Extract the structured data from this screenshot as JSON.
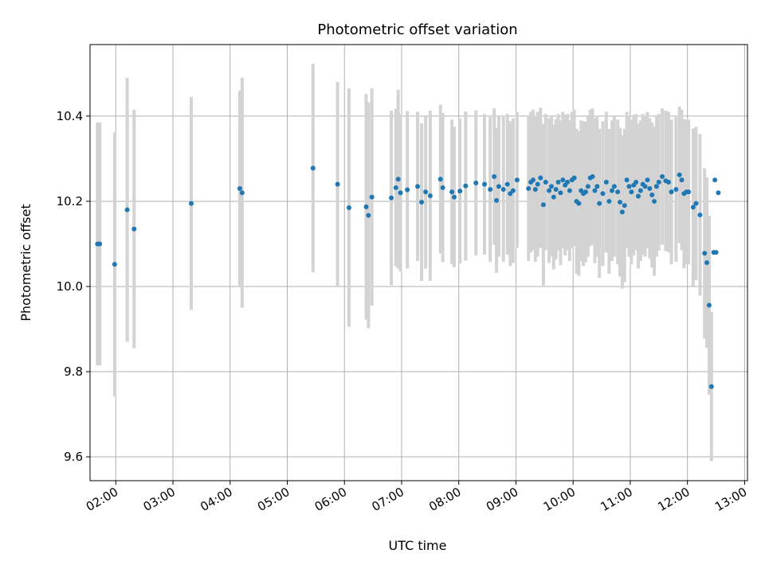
{
  "chart_data": {
    "type": "scatter",
    "title": "Photometric offset variation",
    "xlabel": "UTC time",
    "ylabel": "Photometric offset",
    "xlim": [
      1.55,
      13.05
    ],
    "ylim": [
      9.544,
      10.568
    ],
    "grid": true,
    "x_ticks": [
      {
        "value": 2,
        "label": "02:00"
      },
      {
        "value": 3,
        "label": "03:00"
      },
      {
        "value": 4,
        "label": "04:00"
      },
      {
        "value": 5,
        "label": "05:00"
      },
      {
        "value": 6,
        "label": "06:00"
      },
      {
        "value": 7,
        "label": "07:00"
      },
      {
        "value": 8,
        "label": "08:00"
      },
      {
        "value": 9,
        "label": "09:00"
      },
      {
        "value": 10,
        "label": "10:00"
      },
      {
        "value": 11,
        "label": "11:00"
      },
      {
        "value": 12,
        "label": "12:00"
      },
      {
        "value": 13,
        "label": "13:00"
      }
    ],
    "y_ticks": [
      {
        "value": 9.6,
        "label": "9.6"
      },
      {
        "value": 9.8,
        "label": "9.8"
      },
      {
        "value": 10.0,
        "label": "10.0"
      },
      {
        "value": 10.2,
        "label": "10.2"
      },
      {
        "value": 10.4,
        "label": "10.4"
      }
    ],
    "colors": {
      "points": "#1f77b4",
      "errorbars": "#d3d3d3",
      "grid": "#b0b0b0"
    },
    "series": [
      {
        "name": "Photometric offset",
        "x": [
          1.68,
          1.72,
          1.98,
          2.2,
          2.32,
          3.32,
          4.17,
          4.21,
          5.45,
          5.88,
          6.08,
          6.38,
          6.42,
          6.48,
          6.82,
          6.9,
          6.94,
          6.98,
          7.1,
          7.28,
          7.35,
          7.42,
          7.5,
          7.68,
          7.72,
          7.88,
          7.92,
          8.02,
          8.12,
          8.3,
          8.45,
          8.55,
          8.62,
          8.66,
          8.7,
          8.78,
          8.85,
          8.9,
          8.95,
          9.02,
          9.22,
          9.26,
          9.3,
          9.34,
          9.38,
          9.43,
          9.48,
          9.52,
          9.58,
          9.62,
          9.66,
          9.7,
          9.74,
          9.78,
          9.82,
          9.86,
          9.9,
          9.94,
          9.98,
          10.02,
          10.06,
          10.1,
          10.14,
          10.18,
          10.22,
          10.26,
          10.3,
          10.34,
          10.38,
          10.42,
          10.46,
          10.52,
          10.58,
          10.63,
          10.68,
          10.72,
          10.78,
          10.82,
          10.86,
          10.9,
          10.94,
          10.98,
          11.02,
          11.06,
          11.1,
          11.14,
          11.18,
          11.22,
          11.26,
          11.3,
          11.34,
          11.38,
          11.42,
          11.46,
          11.5,
          11.56,
          11.62,
          11.67,
          11.72,
          11.8,
          11.86,
          11.9,
          11.94,
          11.98,
          12.02,
          12.1,
          12.15,
          12.22,
          12.3,
          12.34,
          12.38,
          12.42,
          12.46,
          12.48,
          12.5,
          12.54
        ],
        "y": [
          10.1,
          10.1,
          10.052,
          10.18,
          10.135,
          10.195,
          10.23,
          10.22,
          10.278,
          10.24,
          10.185,
          10.187,
          10.167,
          10.21,
          10.208,
          10.232,
          10.252,
          10.22,
          10.227,
          10.235,
          10.198,
          10.222,
          10.213,
          10.252,
          10.232,
          10.222,
          10.21,
          10.224,
          10.236,
          10.243,
          10.24,
          10.228,
          10.258,
          10.202,
          10.235,
          10.228,
          10.24,
          10.218,
          10.225,
          10.25,
          10.23,
          10.245,
          10.25,
          10.228,
          10.24,
          10.255,
          10.192,
          10.245,
          10.225,
          10.235,
          10.21,
          10.228,
          10.245,
          10.22,
          10.25,
          10.238,
          10.245,
          10.225,
          10.25,
          10.255,
          10.2,
          10.195,
          10.225,
          10.218,
          10.222,
          10.235,
          10.255,
          10.258,
          10.225,
          10.235,
          10.195,
          10.218,
          10.245,
          10.2,
          10.225,
          10.235,
          10.222,
          10.198,
          10.175,
          10.19,
          10.25,
          10.235,
          10.222,
          10.238,
          10.245,
          10.212,
          10.225,
          10.24,
          10.235,
          10.25,
          10.23,
          10.215,
          10.2,
          10.235,
          10.245,
          10.258,
          10.248,
          10.245,
          10.222,
          10.228,
          10.262,
          10.25,
          10.218,
          10.222,
          10.222,
          10.186,
          10.195,
          10.168,
          10.078,
          10.056,
          9.956,
          9.765,
          10.08,
          10.25,
          10.08,
          10.22
        ],
        "yerr": [
          0.285,
          0.285,
          0.31,
          0.31,
          0.28,
          0.25,
          0.23,
          0.27,
          0.245,
          0.24,
          0.28,
          0.265,
          0.265,
          0.255,
          0.205,
          0.185,
          0.21,
          0.185,
          0.185,
          0.175,
          0.185,
          0.18,
          0.2,
          0.175,
          0.175,
          0.17,
          0.165,
          0.17,
          0.175,
          0.17,
          0.165,
          0.17,
          0.16,
          0.17,
          0.165,
          0.17,
          0.165,
          0.17,
          0.17,
          0.16,
          0.17,
          0.165,
          0.165,
          0.17,
          0.17,
          0.165,
          0.19,
          0.16,
          0.17,
          0.165,
          0.17,
          0.165,
          0.16,
          0.17,
          0.16,
          0.165,
          0.16,
          0.165,
          0.16,
          0.16,
          0.17,
          0.17,
          0.165,
          0.17,
          0.165,
          0.165,
          0.16,
          0.16,
          0.17,
          0.165,
          0.175,
          0.17,
          0.165,
          0.17,
          0.165,
          0.165,
          0.17,
          0.175,
          0.18,
          0.18,
          0.16,
          0.165,
          0.17,
          0.165,
          0.16,
          0.17,
          0.165,
          0.165,
          0.165,
          0.16,
          0.165,
          0.17,
          0.175,
          0.165,
          0.16,
          0.16,
          0.165,
          0.165,
          0.17,
          0.17,
          0.16,
          0.165,
          0.175,
          0.17,
          0.17,
          0.185,
          0.18,
          0.19,
          0.2,
          0.2,
          0.21,
          0.175,
          0.0,
          0.0,
          0.0,
          0.0
        ]
      }
    ]
  }
}
